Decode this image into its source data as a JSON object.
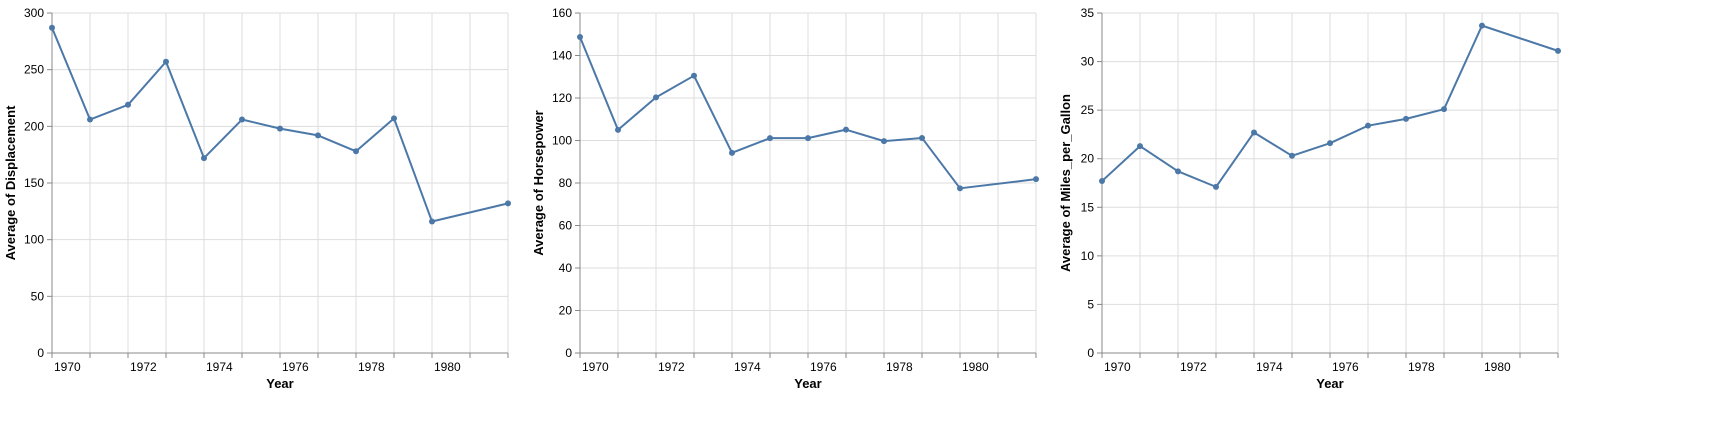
{
  "colors": {
    "series": "#4c78a8",
    "grid": "#dddddd",
    "axis": "#888888"
  },
  "chart_data": [
    {
      "type": "line",
      "xlabel": "Year",
      "ylabel": "Average of Displacement",
      "xlim": [
        1970,
        1982
      ],
      "ylim": [
        0,
        300
      ],
      "x_ticks": [
        1970,
        1972,
        1974,
        1976,
        1978,
        1980
      ],
      "y_ticks": [
        0,
        50,
        100,
        150,
        200,
        250,
        300
      ],
      "grid": true,
      "x": [
        1970,
        1971,
        1972,
        1973,
        1974,
        1975,
        1976,
        1977,
        1978,
        1979,
        1980,
        1982
      ],
      "values": [
        287,
        206,
        219,
        257,
        172,
        206,
        198,
        192,
        178,
        207,
        116,
        132
      ]
    },
    {
      "type": "line",
      "xlabel": "Year",
      "ylabel": "Average of Horsepower",
      "xlim": [
        1970,
        1982
      ],
      "ylim": [
        0,
        160
      ],
      "x_ticks": [
        1970,
        1972,
        1974,
        1976,
        1978,
        1980
      ],
      "y_ticks": [
        0,
        20,
        40,
        60,
        80,
        100,
        120,
        140,
        160
      ],
      "grid": true,
      "x": [
        1970,
        1971,
        1972,
        1973,
        1974,
        1975,
        1976,
        1977,
        1978,
        1979,
        1980,
        1982
      ],
      "values": [
        148.7,
        105,
        120.3,
        130.5,
        94.2,
        101.1,
        101.1,
        105.1,
        99.7,
        101.2,
        77.5,
        81.8
      ]
    },
    {
      "type": "line",
      "xlabel": "Year",
      "ylabel": "Average of Miles_per_Gallon",
      "xlim": [
        1970,
        1982
      ],
      "ylim": [
        0,
        35
      ],
      "x_ticks": [
        1970,
        1972,
        1974,
        1976,
        1978,
        1980
      ],
      "y_ticks": [
        0,
        5,
        10,
        15,
        20,
        25,
        30,
        35
      ],
      "grid": true,
      "x": [
        1970,
        1971,
        1972,
        1973,
        1974,
        1975,
        1976,
        1977,
        1978,
        1979,
        1980,
        1982
      ],
      "values": [
        17.7,
        21.3,
        18.7,
        17.1,
        22.7,
        20.3,
        21.6,
        23.4,
        24.1,
        25.1,
        33.7,
        31.1
      ]
    }
  ]
}
